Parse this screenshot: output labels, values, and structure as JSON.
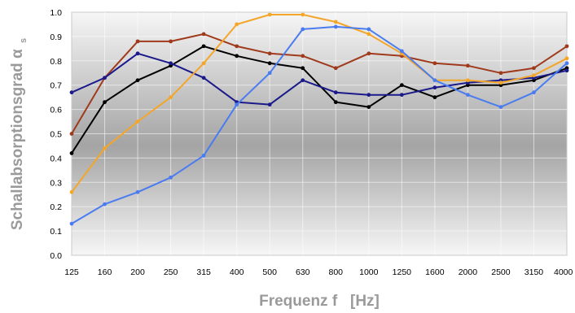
{
  "chart_data": {
    "type": "line",
    "title": "",
    "xlabel": "Frequenz f   [Hz]",
    "ylabel": "Schallabsorptionsgrad α",
    "ylabel_subscript": "s",
    "categories": [
      "125",
      "160",
      "200",
      "250",
      "315",
      "400",
      "500",
      "630",
      "800",
      "1000",
      "1250",
      "1600",
      "2000",
      "2500",
      "3150",
      "4000"
    ],
    "yticks": [
      "0.0",
      "0.1",
      "0.2",
      "0.3",
      "0.4",
      "0.5",
      "0.6",
      "0.7",
      "0.8",
      "0.9",
      "1.0"
    ],
    "ylim": [
      0,
      1.0
    ],
    "grid": true,
    "legend": "none",
    "series": [
      {
        "color": "#a03a1c",
        "values": [
          0.5,
          0.73,
          0.88,
          0.88,
          0.91,
          0.86,
          0.83,
          0.82,
          0.77,
          0.83,
          0.82,
          0.79,
          0.78,
          0.75,
          0.77,
          0.86
        ]
      },
      {
        "color": "#000000",
        "values": [
          0.42,
          0.63,
          0.72,
          0.78,
          0.86,
          0.82,
          0.79,
          0.77,
          0.63,
          0.61,
          0.7,
          0.65,
          0.7,
          0.7,
          0.72,
          0.77
        ]
      },
      {
        "color": "#1a1a8a",
        "values": [
          0.67,
          0.73,
          0.83,
          0.79,
          0.73,
          0.63,
          0.62,
          0.72,
          0.67,
          0.66,
          0.66,
          0.69,
          0.71,
          0.72,
          0.73,
          0.76
        ]
      },
      {
        "color": "#f4a62a",
        "values": [
          0.26,
          0.44,
          0.55,
          0.65,
          0.79,
          0.95,
          0.99,
          0.99,
          0.96,
          0.91,
          0.83,
          0.72,
          0.72,
          0.71,
          0.74,
          0.81
        ]
      },
      {
        "color": "#4a7cf0",
        "values": [
          0.13,
          0.21,
          0.26,
          0.32,
          0.41,
          0.62,
          0.75,
          0.93,
          0.94,
          0.93,
          0.84,
          0.72,
          0.66,
          0.61,
          0.67,
          0.79
        ]
      }
    ]
  }
}
